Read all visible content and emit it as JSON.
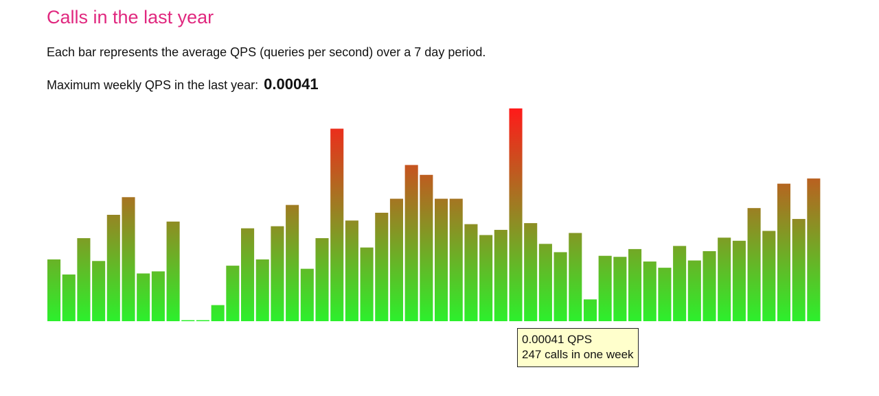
{
  "title": "Calls in the last year",
  "description": "Each bar represents the average QPS (queries per second) over a 7 day period.",
  "max_label": "Maximum weekly QPS in the last year:",
  "max_value": "0.00041",
  "tooltip": {
    "qps": "0.00041 QPS",
    "calls": "247 calls in one week"
  },
  "colors": {
    "title": "#e0287f",
    "bar_low": "#2cf02c",
    "bar_high": "#ff1a1a",
    "tooltip_bg": "#ffffcc"
  },
  "chart_data": {
    "type": "bar",
    "title": "",
    "xlabel": "",
    "ylabel": "",
    "ylim": [
      0,
      0.00041
    ],
    "grid": false,
    "legend": "none",
    "highlighted_index": 31,
    "values": [
      0.000119,
      9e-05,
      0.00016,
      0.000116,
      0.000205,
      0.000239,
      9.2e-05,
      9.6e-05,
      0.000192,
      2e-06,
      2e-06,
      3.1e-05,
      0.000107,
      0.000179,
      0.000119,
      0.000183,
      0.000224,
      0.000101,
      0.00016,
      0.000371,
      0.000194,
      0.000142,
      0.000209,
      0.000236,
      0.000301,
      0.000282,
      0.000236,
      0.000236,
      0.000187,
      0.000166,
      0.000176,
      0.00041,
      0.000189,
      0.000149,
      0.000133,
      0.00017,
      4.2e-05,
      0.000126,
      0.000124,
      0.000139,
      0.000115,
      0.000103,
      0.000145,
      0.000117,
      0.000135,
      0.000161,
      0.000155,
      0.000218,
      0.000174,
      0.000265,
      0.000197,
      0.000275
    ]
  }
}
